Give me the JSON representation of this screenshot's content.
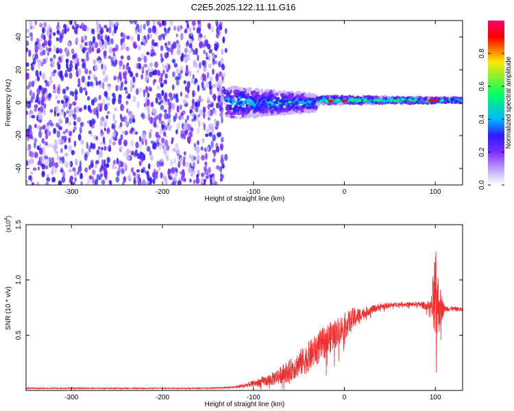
{
  "title": "C2E5.2025.122.11.11.G16",
  "colors": {
    "snr_line": "#ee3030",
    "frame": "#000000",
    "spectrogram_palette": [
      "#ffffff",
      "#c9b3ff",
      "#7b2cff",
      "#2d1cff",
      "#00b7ff",
      "#00ff66",
      "#ffe600",
      "#ff0000"
    ]
  },
  "chart_data": [
    {
      "type": "heatmap",
      "xlabel": "Height of straight line (km)",
      "ylabel": "Frequency (Hz)",
      "xlim": [
        -350,
        130
      ],
      "ylim": [
        -50,
        50
      ],
      "xticks": [
        -300,
        -200,
        -100,
        0,
        100
      ],
      "yticks": [
        -40,
        -20,
        0,
        20,
        40
      ],
      "colorbar": {
        "label": "Normalized spectral amplitude",
        "range": [
          0,
          1
        ],
        "ticks": [
          "0.0",
          "0.2",
          "0.4",
          "0.6",
          "0.8"
        ]
      },
      "regions": [
        {
          "x": [
            -350,
            -130
          ],
          "freq_range": [
            -50,
            50
          ],
          "level": 0.15
        },
        {
          "x": [
            -130,
            -30
          ],
          "center_freq": 0,
          "half_width": 10,
          "level": 0.4
        },
        {
          "x": [
            -30,
            130
          ],
          "center_freq": 1.5,
          "half_width": 2.5,
          "level": 0.6
        }
      ],
      "hotspots": [
        {
          "x": -15,
          "freq": 1,
          "level": 0.95
        },
        {
          "x": 0,
          "freq": 1,
          "level": 0.9
        },
        {
          "x": 100,
          "freq": 1.5,
          "level": 0.95
        },
        {
          "x": 95,
          "freq": 1.5,
          "level": 0.9
        }
      ]
    },
    {
      "type": "line",
      "xlabel": "Height of straight line (km)",
      "ylabel": "SNR (10 * v/v)",
      "y_multiplier": "(x10",
      "y_multiplier_exp": "4",
      "y_multiplier_close": ")",
      "xlim": [
        -350,
        130
      ],
      "ylim": [
        0,
        1.5
      ],
      "xticks": [
        -300,
        -200,
        -100,
        0,
        100
      ],
      "yticks": [
        "0.5",
        "1.0",
        "1.5"
      ],
      "series": [
        {
          "x": [
            -350,
            -300,
            -250,
            -200,
            -150,
            -120,
            -100,
            -80,
            -60,
            -40,
            -20,
            0,
            10,
            20,
            40,
            60,
            80,
            95,
            100,
            105,
            110,
            120,
            130
          ],
          "y": [
            0.02,
            0.02,
            0.02,
            0.02,
            0.02,
            0.03,
            0.06,
            0.1,
            0.18,
            0.3,
            0.45,
            0.58,
            0.65,
            0.7,
            0.76,
            0.78,
            0.78,
            0.76,
            0.8,
            0.76,
            0.74,
            0.74,
            0.73
          ],
          "noise": [
            0.005,
            0.005,
            0.005,
            0.005,
            0.005,
            0.01,
            0.03,
            0.06,
            0.1,
            0.14,
            0.15,
            0.12,
            0.1,
            0.05,
            0.03,
            0.02,
            0.02,
            0.05,
            0.5,
            0.2,
            0.03,
            0.02,
            0.02
          ]
        }
      ]
    }
  ]
}
